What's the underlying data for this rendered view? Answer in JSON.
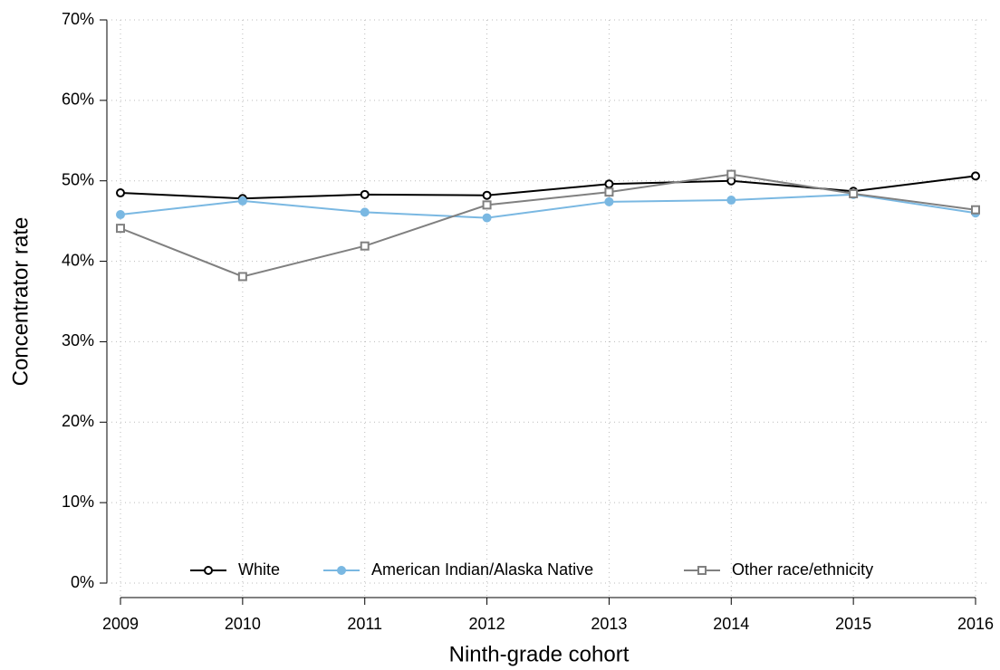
{
  "chart_data": {
    "type": "line",
    "categories": [
      "2009",
      "2010",
      "2011",
      "2012",
      "2013",
      "2014",
      "2015",
      "2016"
    ],
    "series": [
      {
        "name": "White",
        "color": "#000000",
        "marker": "circle-open",
        "values": [
          48.5,
          47.8,
          48.3,
          48.2,
          49.6,
          50.0,
          48.7,
          50.6
        ]
      },
      {
        "name": "American Indian/Alaska Native",
        "color": "#7ab8e2",
        "marker": "circle-filled",
        "values": [
          45.8,
          47.5,
          46.1,
          45.4,
          47.4,
          47.6,
          48.3,
          46.0
        ]
      },
      {
        "name": "Other race/ethnicity",
        "color": "#808080",
        "marker": "square-open",
        "values": [
          44.1,
          38.1,
          41.9,
          47.0,
          48.6,
          50.8,
          48.4,
          46.4
        ]
      }
    ],
    "ylim": [
      0,
      70
    ],
    "yticks": [
      {
        "value": 0,
        "label": "0%"
      },
      {
        "value": 10,
        "label": "10%"
      },
      {
        "value": 20,
        "label": "20%"
      },
      {
        "value": 30,
        "label": "30%"
      },
      {
        "value": 40,
        "label": "40%"
      },
      {
        "value": 50,
        "label": "50%"
      },
      {
        "value": 60,
        "label": "60%"
      },
      {
        "value": 70,
        "label": "70%"
      }
    ],
    "xlabel": "Ninth-grade cohort",
    "ylabel": "Concentrator rate",
    "grid": true,
    "legend": "bottom"
  }
}
